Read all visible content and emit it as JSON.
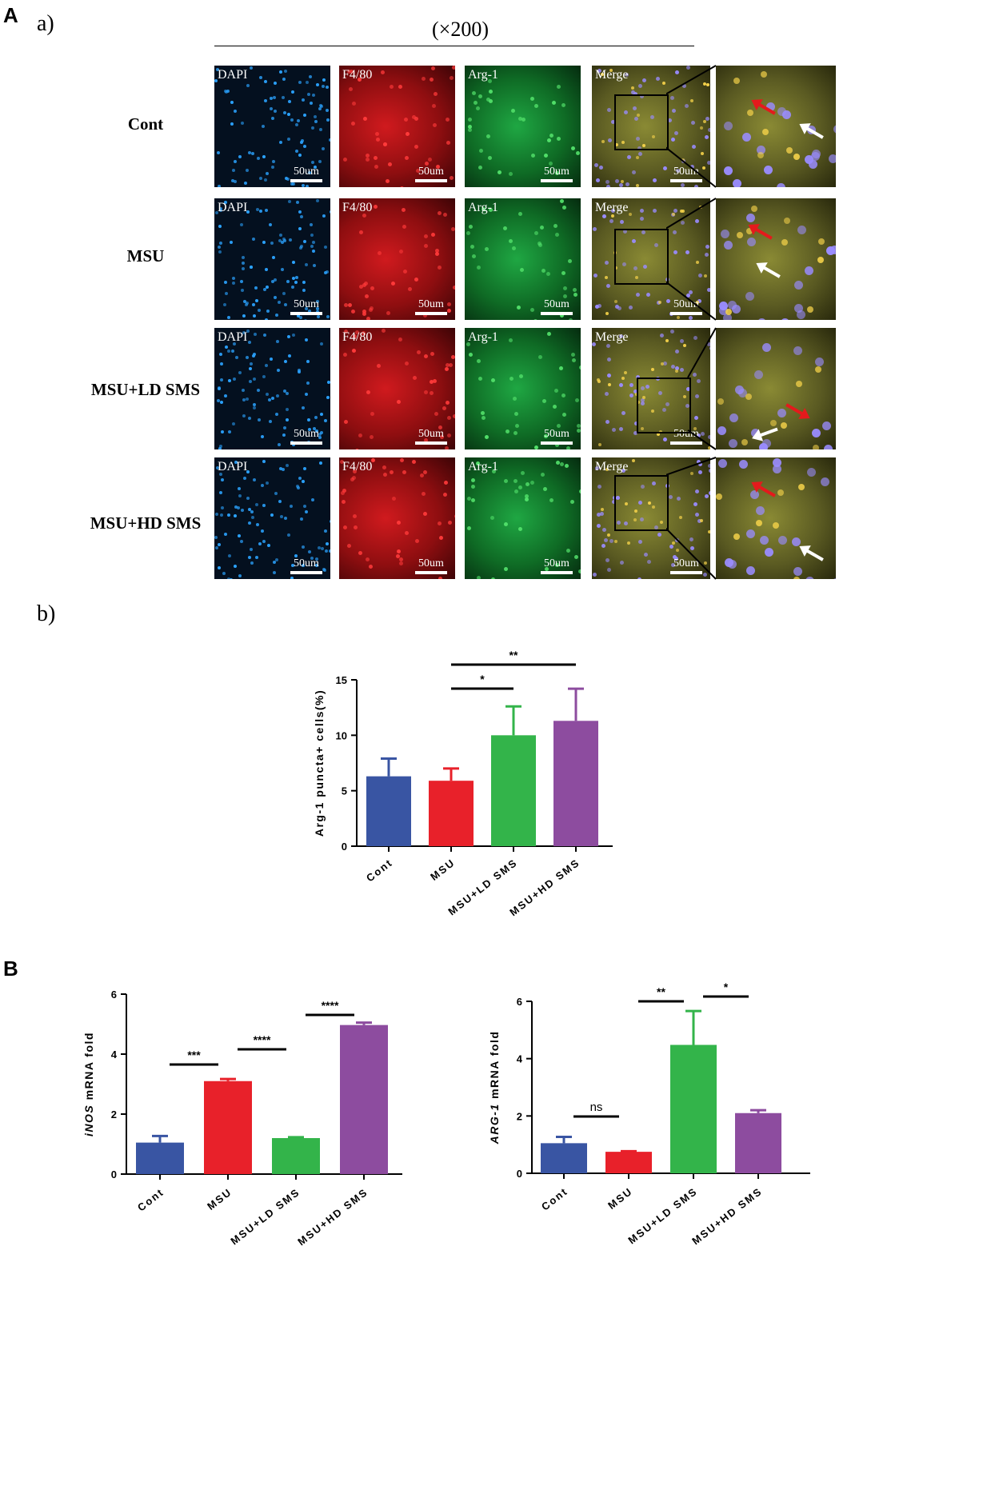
{
  "panel_a": {
    "letter": "A",
    "sub_a": "a)",
    "sub_b": "b)",
    "magnification": "(×200)",
    "channels": [
      "DAPI",
      "F4/80",
      "Arg-1",
      "Merge"
    ],
    "scale_label": "50um",
    "rows": [
      "Cont",
      "MSU",
      "MSU+LD SMS",
      "MSU+HD SMS"
    ],
    "channel_colors": {
      "DAPI": "#0c79c9",
      "F4/80": "#c0171b",
      "Arg-1": "#16973a",
      "Merge": "#6a6a2a"
    },
    "arrow_colors": {
      "red": "#e41a1c",
      "white": "#ffffff"
    }
  },
  "panel_b": {
    "letter": "B"
  },
  "chart_data": [
    {
      "id": "arg1-puncta",
      "type": "bar",
      "categories": [
        "Cont",
        "MSU",
        "MSU+LD SMS",
        "MSU+HD SMS"
      ],
      "values": [
        6.3,
        5.9,
        10.0,
        11.3
      ],
      "errors": [
        1.6,
        1.1,
        2.6,
        2.9
      ],
      "colors": [
        "#3955a3",
        "#e8212a",
        "#33b44a",
        "#8d4c9f"
      ],
      "ylabel": "Arg-1 puncta+ cells(%)",
      "ylim": [
        0,
        15
      ],
      "yticks": [
        0,
        5,
        10,
        15
      ],
      "significance": [
        {
          "from": 1,
          "to": 2,
          "label": "*"
        },
        {
          "from": 1,
          "to": 3,
          "label": "**"
        }
      ]
    },
    {
      "id": "inos-mrna",
      "type": "bar",
      "categories": [
        "Cont",
        "MSU",
        "MSU+LD SMS",
        "MSU+HD SMS"
      ],
      "values": [
        1.05,
        3.1,
        1.2,
        4.97
      ],
      "errors": [
        0.22,
        0.07,
        0.03,
        0.08
      ],
      "colors": [
        "#3955a3",
        "#e8212a",
        "#33b44a",
        "#8d4c9f"
      ],
      "ylabel_italic": "iNOS",
      "ylabel_rest": " mRNA fold",
      "ylim": [
        0,
        6
      ],
      "yticks": [
        0,
        2,
        4,
        6
      ],
      "significance": [
        {
          "from": 0,
          "to": 1,
          "label": "***"
        },
        {
          "from": 1,
          "to": 2,
          "label": "****"
        },
        {
          "from": 2,
          "to": 3,
          "label": "****"
        }
      ]
    },
    {
      "id": "arg1-mrna",
      "type": "bar",
      "categories": [
        "Cont",
        "MSU",
        "MSU+LD SMS",
        "MSU+HD SMS"
      ],
      "values": [
        1.05,
        0.75,
        4.48,
        2.1
      ],
      "errors": [
        0.22,
        0.02,
        1.18,
        0.1
      ],
      "colors": [
        "#3955a3",
        "#e8212a",
        "#33b44a",
        "#8d4c9f"
      ],
      "ylabel_italic": "ARG-1",
      "ylabel_rest": " mRNA fold",
      "ylim": [
        0,
        6
      ],
      "yticks": [
        0,
        2,
        4,
        6
      ],
      "significance": [
        {
          "from": 0,
          "to": 1,
          "label": "ns"
        },
        {
          "from": 1,
          "to": 2,
          "label": "**"
        },
        {
          "from": 2,
          "to": 3,
          "label": "*"
        }
      ]
    }
  ]
}
